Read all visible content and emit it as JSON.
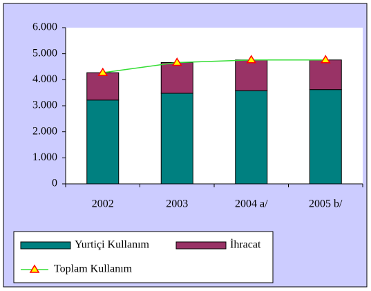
{
  "chart_data": {
    "type": "bar",
    "stacked": true,
    "categories": [
      "2002",
      "2003",
      "2004 a/",
      "2005 b/"
    ],
    "series": [
      {
        "name": "Yurtiçi Kullanım",
        "color": "#008080",
        "values": [
          3220,
          3480,
          3580,
          3620
        ]
      },
      {
        "name": "İhracat",
        "color": "#993366",
        "values": [
          1050,
          1180,
          1180,
          1140
        ]
      },
      {
        "name": "Toplam Kullanım",
        "type": "line",
        "color": "#33dd33",
        "marker_color": "#ffff00",
        "marker_edge": "#ff0000",
        "values": [
          4270,
          4660,
          4760,
          4760
        ]
      }
    ],
    "ylim": [
      0,
      6000
    ],
    "yticks": [
      0,
      {
        "value": 1000,
        "label": "1.000"
      },
      {
        "value": 2000,
        "label": "2.000"
      },
      {
        "value": 3000,
        "label": "3.000"
      },
      {
        "value": 4000,
        "label": "4.000"
      },
      {
        "value": 5000,
        "label": "5.000"
      },
      {
        "value": 6000,
        "label": "6.000"
      }
    ],
    "grid": false,
    "legend": "bottom"
  }
}
